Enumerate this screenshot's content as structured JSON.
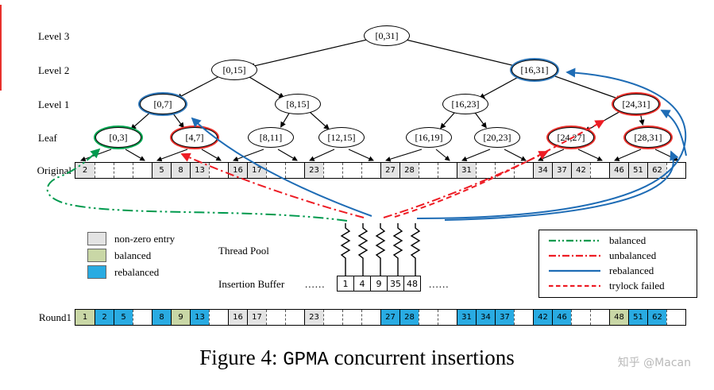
{
  "labels": {
    "level3": "Level 3",
    "level2": "Level 2",
    "level1": "Level 1",
    "leaf": "Leaf",
    "original": "Original",
    "round1": "Round1",
    "thread_pool": "Thread Pool",
    "insertion_buffer": "Insertion Buffer",
    "dots_left": "......",
    "dots_right": "......"
  },
  "tree_nodes": [
    {
      "id": "n0_31",
      "text": "[0,31]",
      "ring": "none"
    },
    {
      "id": "n0_15",
      "text": "[0,15]",
      "ring": "none"
    },
    {
      "id": "n16_31",
      "text": "[16,31]",
      "ring": "blue"
    },
    {
      "id": "n0_7",
      "text": "[0,7]",
      "ring": "blue"
    },
    {
      "id": "n8_15",
      "text": "[8,15]",
      "ring": "none"
    },
    {
      "id": "n16_23",
      "text": "[16,23]",
      "ring": "none"
    },
    {
      "id": "n24_31",
      "text": "[24,31]",
      "ring": "red"
    },
    {
      "id": "f0_3",
      "text": "[0,3]",
      "ring": "green"
    },
    {
      "id": "f4_7",
      "text": "[4,7]",
      "ring": "red"
    },
    {
      "id": "f8_11",
      "text": "[8,11]",
      "ring": "none"
    },
    {
      "id": "f12_15",
      "text": "[12,15]",
      "ring": "none"
    },
    {
      "id": "f16_19",
      "text": "[16,19]",
      "ring": "none"
    },
    {
      "id": "f20_23",
      "text": "[20,23]",
      "ring": "none"
    },
    {
      "id": "f24_27",
      "text": "[24,27]",
      "ring": "red"
    },
    {
      "id": "f28_31",
      "text": "[28,31]",
      "ring": "red"
    }
  ],
  "original_cells": [
    {
      "v": "2",
      "f": "gray"
    },
    {
      "v": "",
      "f": "none"
    },
    {
      "v": "",
      "f": "none"
    },
    {
      "v": "",
      "f": "none"
    },
    {
      "v": "5",
      "f": "gray"
    },
    {
      "v": "8",
      "f": "gray"
    },
    {
      "v": "13",
      "f": "gray"
    },
    {
      "v": "",
      "f": "none"
    },
    {
      "v": "16",
      "f": "gray"
    },
    {
      "v": "17",
      "f": "gray"
    },
    {
      "v": "",
      "f": "none"
    },
    {
      "v": "",
      "f": "none"
    },
    {
      "v": "23",
      "f": "gray"
    },
    {
      "v": "",
      "f": "none"
    },
    {
      "v": "",
      "f": "none"
    },
    {
      "v": "",
      "f": "none"
    },
    {
      "v": "27",
      "f": "gray"
    },
    {
      "v": "28",
      "f": "gray"
    },
    {
      "v": "",
      "f": "none"
    },
    {
      "v": "",
      "f": "none"
    },
    {
      "v": "31",
      "f": "gray"
    },
    {
      "v": "",
      "f": "none"
    },
    {
      "v": "",
      "f": "none"
    },
    {
      "v": "",
      "f": "none"
    },
    {
      "v": "34",
      "f": "gray"
    },
    {
      "v": "37",
      "f": "gray"
    },
    {
      "v": "42",
      "f": "gray"
    },
    {
      "v": "",
      "f": "none"
    },
    {
      "v": "46",
      "f": "gray"
    },
    {
      "v": "51",
      "f": "gray"
    },
    {
      "v": "62",
      "f": "gray"
    },
    {
      "v": "",
      "f": "none"
    }
  ],
  "round1_cells": [
    {
      "v": "1",
      "f": "green"
    },
    {
      "v": "2",
      "f": "blue"
    },
    {
      "v": "5",
      "f": "blue"
    },
    {
      "v": "",
      "f": "none"
    },
    {
      "v": "8",
      "f": "blue"
    },
    {
      "v": "9",
      "f": "green"
    },
    {
      "v": "13",
      "f": "blue"
    },
    {
      "v": "",
      "f": "none"
    },
    {
      "v": "16",
      "f": "gray"
    },
    {
      "v": "17",
      "f": "gray"
    },
    {
      "v": "",
      "f": "none"
    },
    {
      "v": "",
      "f": "none"
    },
    {
      "v": "23",
      "f": "gray"
    },
    {
      "v": "",
      "f": "none"
    },
    {
      "v": "",
      "f": "none"
    },
    {
      "v": "",
      "f": "none"
    },
    {
      "v": "27",
      "f": "blue"
    },
    {
      "v": "28",
      "f": "blue"
    },
    {
      "v": "",
      "f": "none"
    },
    {
      "v": "",
      "f": "none"
    },
    {
      "v": "31",
      "f": "blue"
    },
    {
      "v": "34",
      "f": "blue"
    },
    {
      "v": "37",
      "f": "blue"
    },
    {
      "v": "",
      "f": "none"
    },
    {
      "v": "42",
      "f": "blue"
    },
    {
      "v": "46",
      "f": "blue"
    },
    {
      "v": "",
      "f": "none"
    },
    {
      "v": "",
      "f": "none"
    },
    {
      "v": "48",
      "f": "green"
    },
    {
      "v": "51",
      "f": "blue"
    },
    {
      "v": "62",
      "f": "blue"
    },
    {
      "v": "",
      "f": "none"
    }
  ],
  "color_legend": [
    {
      "label": "non-zero entry",
      "fill": "#e3e3e3"
    },
    {
      "label": "balanced",
      "fill": "#c9d7a6"
    },
    {
      "label": "rebalanced",
      "fill": "#29abe2"
    }
  ],
  "insertion_buffer_values": [
    "1",
    "4",
    "9",
    "35",
    "48"
  ],
  "line_legend": [
    {
      "label": "balanced",
      "color": "#009a4e",
      "dash": "9 3 2 3 2 3"
    },
    {
      "label": "unbalanced",
      "color": "#ed1c24",
      "dash": "9 3 2 3"
    },
    {
      "label": "rebalanced",
      "color": "#1e6cb5",
      "dash": ""
    },
    {
      "label": "trylock failed",
      "color": "#ed1c24",
      "dash": "5.5 3.5"
    }
  ],
  "caption": {
    "prefix": "Figure 4: ",
    "code": "GPMA",
    "suffix": " concurrent insertions"
  },
  "watermark": "知乎 @Macan",
  "colors": {
    "cell_gray": "#e3e3e3",
    "cell_green": "#c9d7a6",
    "cell_blue": "#29abe2",
    "ring_green": "#00a551",
    "ring_red": "#e8312c",
    "ring_blue": "#2e75b6",
    "line_green": "#009a4e",
    "line_red": "#ed1c24",
    "line_blue": "#1e6cb5"
  }
}
